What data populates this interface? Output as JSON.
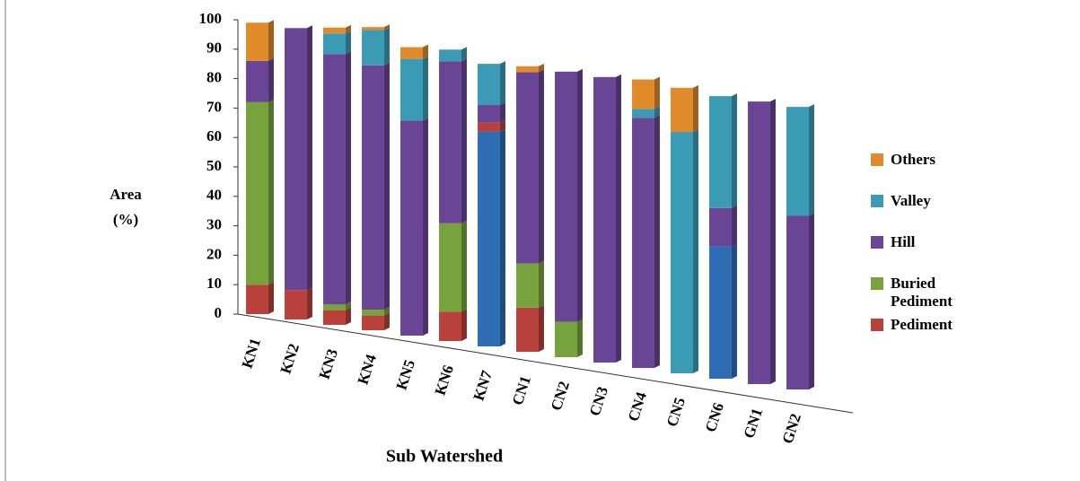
{
  "chart_data": {
    "type": "bar",
    "stacked": true,
    "ylabel": [
      "Area",
      "(%)"
    ],
    "xlabel": "Sub Watershed",
    "categories": [
      "KN1",
      "KN2",
      "KN3",
      "KN4",
      "KN5",
      "KN6",
      "KN7",
      "CN1",
      "CN2",
      "CN3",
      "CN4",
      "CN5",
      "CN6",
      "GN1",
      "GN2"
    ],
    "series": [
      {
        "name": null,
        "color": "#2e6db4",
        "values": [
          0,
          0,
          0,
          0,
          0,
          0,
          73,
          0,
          0,
          0,
          0,
          0,
          45,
          0,
          0
        ]
      },
      {
        "name": "Pediment",
        "color": "#b8413c",
        "values": [
          10,
          10,
          5,
          5,
          0,
          10,
          3,
          15,
          0,
          0,
          0,
          0,
          0,
          0,
          0
        ]
      },
      {
        "name": "Buried Pediment",
        "color": "#77a33c",
        "values": [
          62,
          0,
          2,
          2,
          0,
          30,
          0,
          15,
          12,
          0,
          0,
          0,
          0,
          0,
          0
        ]
      },
      {
        "name": "Hill",
        "color": "#6a4596",
        "values": [
          14,
          89,
          85,
          83,
          73,
          55,
          6,
          65,
          85,
          97,
          85,
          0,
          13,
          96,
          59
        ]
      },
      {
        "name": "Valley",
        "color": "#3b9bb4",
        "values": [
          0,
          0,
          7,
          12,
          21,
          4,
          14,
          0,
          0,
          0,
          3,
          82,
          38,
          0,
          37
        ]
      },
      {
        "name": "Others",
        "color": "#e08a2c",
        "values": [
          13,
          0,
          2,
          1,
          4,
          0,
          0,
          2,
          0,
          0,
          10,
          15,
          0,
          0,
          0
        ]
      }
    ],
    "ylim": [
      0,
      100
    ],
    "yticks": [
      0,
      10,
      20,
      30,
      40,
      50,
      60,
      70,
      80,
      90,
      100
    ],
    "legend": "right"
  }
}
